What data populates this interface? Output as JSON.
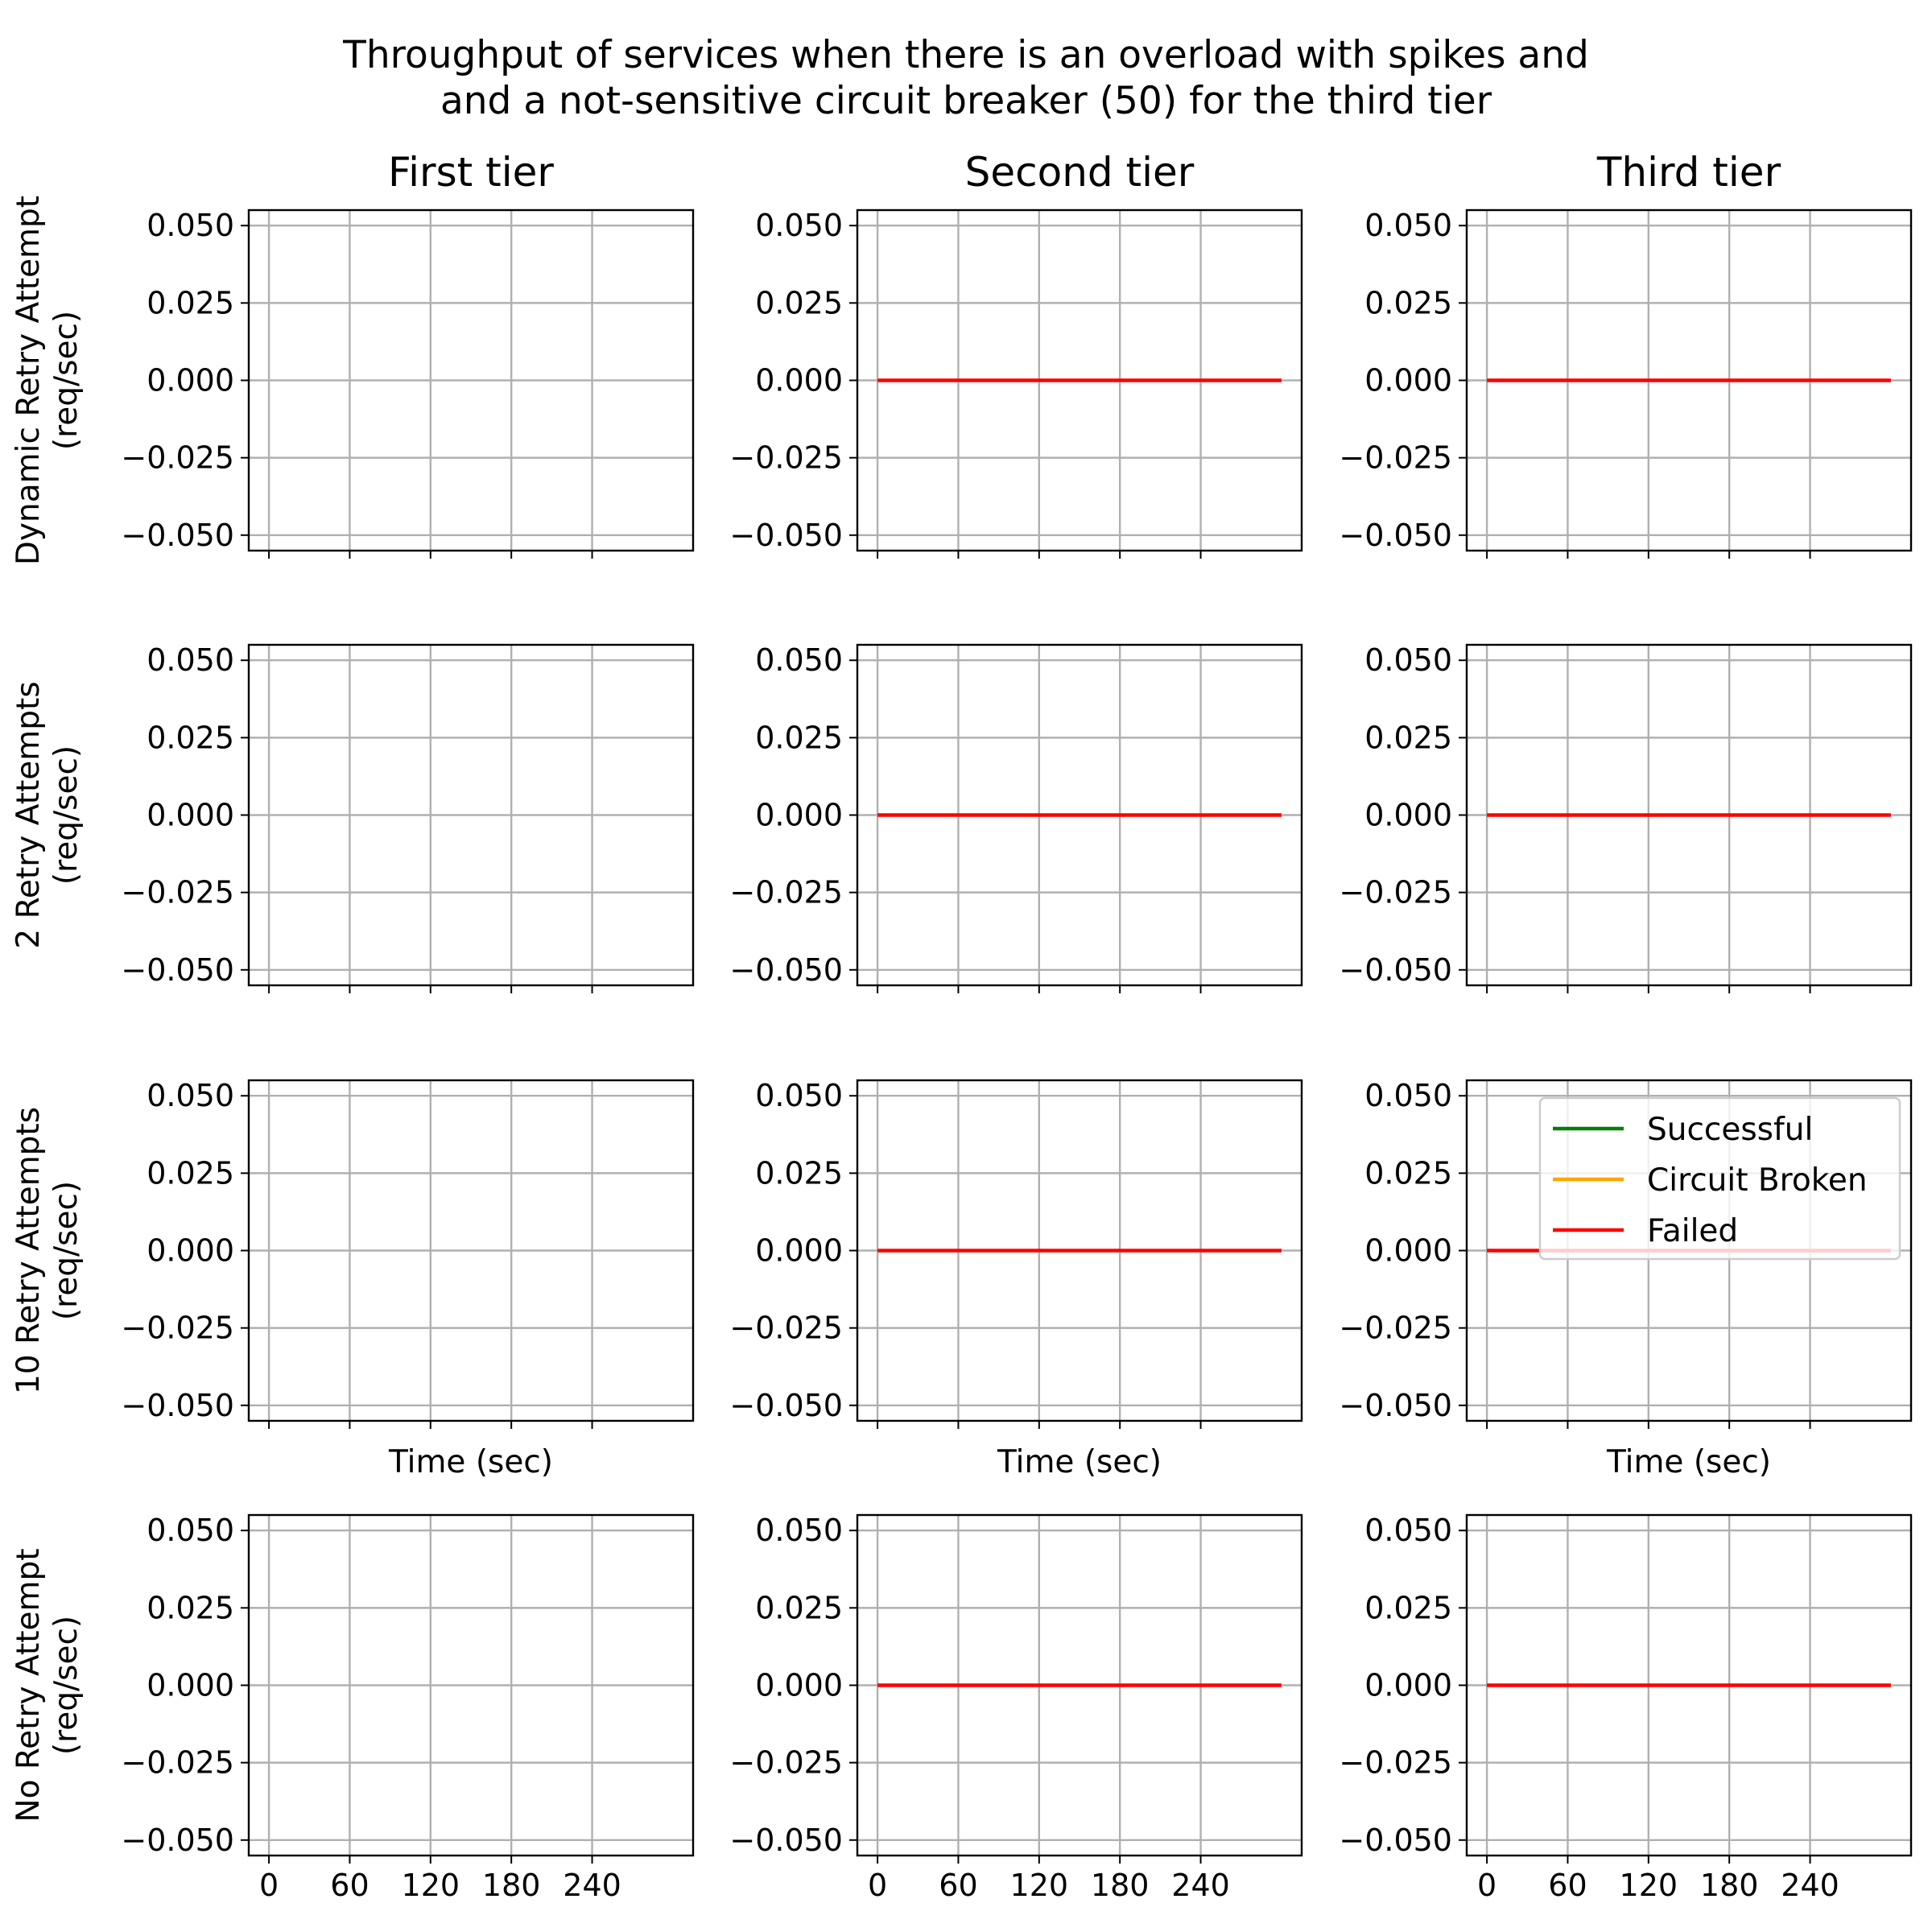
{
  "figure": {
    "title_line1": "Throughput of services when there is an overload with spikes and",
    "title_line2": "and a not-sensitive circuit breaker (50) for the third tier"
  },
  "columns": [
    "First tier",
    "Second tier",
    "Third tier"
  ],
  "rows": [
    {
      "ylabel_line1": "Dynamic Retry Attempt",
      "ylabel_line2": "(req/sec)"
    },
    {
      "ylabel_line1": "2 Retry Attempts",
      "ylabel_line2": "(req/sec)"
    },
    {
      "ylabel_line1": "10 Retry Attempts",
      "ylabel_line2": "(req/sec)"
    },
    {
      "ylabel_line1": "No Retry Attempt",
      "ylabel_line2": "(req/sec)"
    }
  ],
  "xlabel": "Time (sec)",
  "legend": [
    {
      "label": "Successful",
      "color": "#008000"
    },
    {
      "label": "Circuit Broken",
      "color": "#ffa500"
    },
    {
      "label": "Failed",
      "color": "#ff0000"
    }
  ],
  "chart_data": {
    "type": "line",
    "layout": "grid 4 rows x 3 columns",
    "xlabel": "Time (sec)",
    "x_ticks": [
      0,
      60,
      120,
      180,
      240
    ],
    "xlim": [
      -15,
      315
    ],
    "y_ticks": [
      -0.05,
      -0.025,
      0.0,
      0.025,
      0.05
    ],
    "y_tick_labels": [
      "−0.050",
      "−0.025",
      "0.000",
      "0.025",
      "0.050"
    ],
    "ylim": [
      -0.055,
      0.055
    ],
    "grid": true,
    "legend_location": "upper right of row 3, third tier",
    "panels": [
      {
        "row": 0,
        "col": 0,
        "series": []
      },
      {
        "row": 0,
        "col": 1,
        "series": [
          {
            "name": "Failed",
            "color": "#ff0000",
            "x": [
              0,
              300
            ],
            "y": [
              0,
              0
            ]
          }
        ]
      },
      {
        "row": 0,
        "col": 2,
        "series": [
          {
            "name": "Failed",
            "color": "#ff0000",
            "x": [
              0,
              300
            ],
            "y": [
              0,
              0
            ]
          }
        ]
      },
      {
        "row": 1,
        "col": 0,
        "series": []
      },
      {
        "row": 1,
        "col": 1,
        "series": [
          {
            "name": "Failed",
            "color": "#ff0000",
            "x": [
              0,
              300
            ],
            "y": [
              0,
              0
            ]
          }
        ]
      },
      {
        "row": 1,
        "col": 2,
        "series": [
          {
            "name": "Failed",
            "color": "#ff0000",
            "x": [
              0,
              300
            ],
            "y": [
              0,
              0
            ]
          }
        ]
      },
      {
        "row": 2,
        "col": 0,
        "series": []
      },
      {
        "row": 2,
        "col": 1,
        "series": [
          {
            "name": "Failed",
            "color": "#ff0000",
            "x": [
              0,
              300
            ],
            "y": [
              0,
              0
            ]
          }
        ]
      },
      {
        "row": 2,
        "col": 2,
        "series": [
          {
            "name": "Failed",
            "color": "#ff0000",
            "x": [
              0,
              300
            ],
            "y": [
              0,
              0
            ]
          }
        ]
      },
      {
        "row": 3,
        "col": 0,
        "series": []
      },
      {
        "row": 3,
        "col": 1,
        "series": [
          {
            "name": "Failed",
            "color": "#ff0000",
            "x": [
              0,
              300
            ],
            "y": [
              0,
              0
            ]
          }
        ]
      },
      {
        "row": 3,
        "col": 2,
        "series": [
          {
            "name": "Failed",
            "color": "#ff0000",
            "x": [
              0,
              300
            ],
            "y": [
              0,
              0
            ]
          }
        ]
      }
    ]
  }
}
